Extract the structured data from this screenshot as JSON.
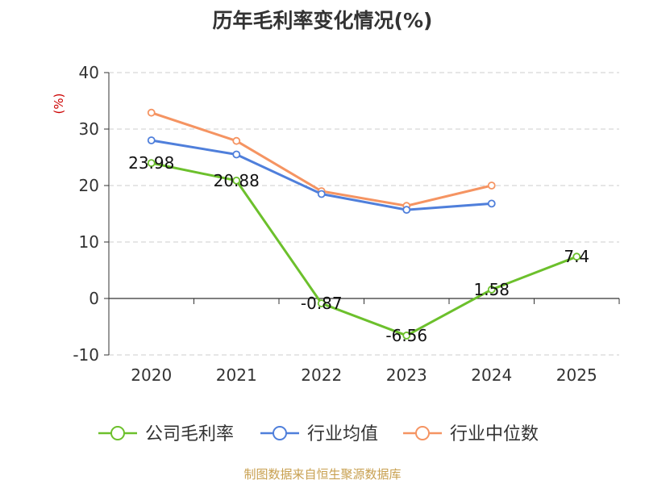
{
  "chart_data": {
    "type": "line",
    "title": "历年毛利率变化情况(%)",
    "ylabel": "(%)",
    "xlabel": "",
    "ylim": [
      -10,
      40
    ],
    "yticks": [
      -10,
      0,
      10,
      20,
      30,
      40
    ],
    "categories": [
      "2020",
      "2021",
      "2022",
      "2023",
      "2024",
      "2025"
    ],
    "grid": true,
    "legend_position": "bottom",
    "series": [
      {
        "name": "公司毛利率",
        "color": "#6cc02c",
        "values": [
          23.98,
          20.88,
          -0.87,
          -6.56,
          1.58,
          7.4
        ],
        "labels": [
          "23.98",
          "20.88",
          "-0.87",
          "-6.56",
          "1.58",
          "7.4"
        ]
      },
      {
        "name": "行业均值",
        "color": "#4f7fdb",
        "values": [
          28.0,
          25.5,
          18.5,
          15.7,
          16.8,
          null
        ]
      },
      {
        "name": "行业中位数",
        "color": "#f59462",
        "values": [
          32.9,
          27.9,
          19.0,
          16.4,
          20.0,
          null
        ]
      }
    ]
  },
  "source": "制图数据来自恒生聚源数据库"
}
